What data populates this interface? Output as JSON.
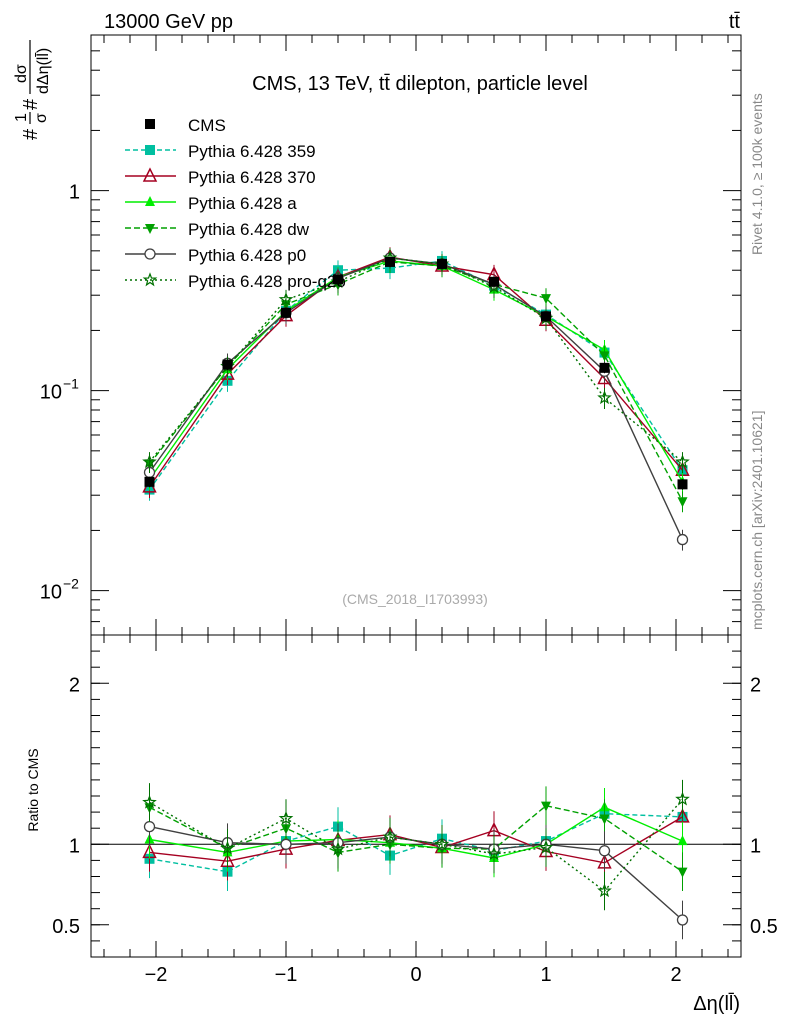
{
  "header": {
    "energy_label": "13000 GeV pp",
    "process_label": "tt̄"
  },
  "side_labels": {
    "rivet": "Rivet 4.1.0, ≥ 100k events",
    "mcplots": "mcplots.cern.ch [arXiv:2401.10621]"
  },
  "chart_data": {
    "type": "line",
    "title": "CMS, 13 TeV, tt̄ dilepton, particle level",
    "analysis_id": "(CMS_2018_I1703993)",
    "ylabel_main": "#1/σ# dσ/dΔη(ll̄)",
    "ylabel_ratio": "Ratio to CMS",
    "xlabel": "Δη(ll̄)",
    "xlim": [
      -2.5,
      2.5
    ],
    "ylim_main": [
      0.006,
      6
    ],
    "ylim_ratio": [
      0.3,
      2.3
    ],
    "x_ticks": [
      {
        "value": -2,
        "label": "−2"
      },
      {
        "value": -1,
        "label": "−1"
      },
      {
        "value": 0,
        "label": "0"
      },
      {
        "value": 1,
        "label": "1"
      },
      {
        "value": 2,
        "label": "2"
      }
    ],
    "y_ticks_main": [
      {
        "value": 1,
        "label": "1",
        "exp": ""
      },
      {
        "value": 0.1,
        "label": "10",
        "exp": "−1"
      },
      {
        "value": 0.01,
        "label": "10",
        "exp": "−2"
      }
    ],
    "y_ticks_ratio": [
      {
        "value": 0.5,
        "label": "0.5"
      },
      {
        "value": 1,
        "label": "1"
      },
      {
        "value": 2,
        "label": "2"
      }
    ],
    "x": [
      -2.05,
      -1.45,
      -1.0,
      -0.6,
      -0.2,
      0.2,
      0.6,
      1.0,
      1.45,
      2.05
    ],
    "data": {
      "name": "CMS",
      "values": [
        0.035,
        0.135,
        0.245,
        0.36,
        0.44,
        0.43,
        0.35,
        0.235,
        0.13,
        0.034
      ]
    },
    "series": [
      {
        "name": "Pythia 6.428 359",
        "color": "#00bfa0",
        "dash": "5,3",
        "marker": "square",
        "values": [
          0.032,
          0.112,
          0.25,
          0.4,
          0.41,
          0.445,
          0.335,
          0.24,
          0.155,
          0.04
        ],
        "ratio": [
          0.91,
          0.83,
          1.02,
          1.11,
          0.93,
          1.035,
          0.96,
          1.02,
          1.19,
          1.17
        ]
      },
      {
        "name": "Pythia 6.428 370",
        "color": "#a50021",
        "dash": "",
        "marker": "triangle-open",
        "values": [
          0.033,
          0.121,
          0.237,
          0.37,
          0.465,
          0.42,
          0.38,
          0.225,
          0.115,
          0.04
        ],
        "ratio": [
          0.95,
          0.895,
          0.97,
          1.025,
          1.06,
          0.98,
          1.085,
          0.955,
          0.885,
          1.17
        ]
      },
      {
        "name": "Pythia 6.428 a",
        "color": "#00ee00",
        "dash": "",
        "marker": "triangle",
        "values": [
          0.036,
          0.128,
          0.25,
          0.37,
          0.445,
          0.42,
          0.32,
          0.235,
          0.16,
          0.035
        ],
        "ratio": [
          1.03,
          0.95,
          1.02,
          1.03,
          1.01,
          0.975,
          0.915,
          1.0,
          1.23,
          1.02
        ]
      },
      {
        "name": "Pythia 6.428 dw",
        "color": "#00a000",
        "dash": "6,3",
        "marker": "triangle-down",
        "values": [
          0.043,
          0.132,
          0.27,
          0.34,
          0.44,
          0.42,
          0.34,
          0.29,
          0.15,
          0.028
        ],
        "ratio": [
          1.23,
          0.975,
          1.1,
          0.95,
          1.0,
          0.975,
          0.97,
          1.24,
          1.16,
          0.83
        ]
      },
      {
        "name": "Pythia 6.428 p0",
        "color": "#404040",
        "dash": "",
        "marker": "circle-open",
        "values": [
          0.039,
          0.137,
          0.245,
          0.365,
          0.46,
          0.43,
          0.34,
          0.235,
          0.125,
          0.018
        ],
        "ratio": [
          1.11,
          1.01,
          1.0,
          1.01,
          1.045,
          1.0,
          0.97,
          1.0,
          0.96,
          0.53
        ]
      },
      {
        "name": "Pythia 6.428 pro-q2o",
        "color": "#007000",
        "dash": "2,3",
        "marker": "star",
        "values": [
          0.044,
          0.132,
          0.285,
          0.35,
          0.46,
          0.43,
          0.33,
          0.23,
          0.092,
          0.044
        ],
        "ratio": [
          1.26,
          0.975,
          1.16,
          0.97,
          1.045,
          1.0,
          0.94,
          0.98,
          0.71,
          1.28
        ]
      }
    ]
  }
}
